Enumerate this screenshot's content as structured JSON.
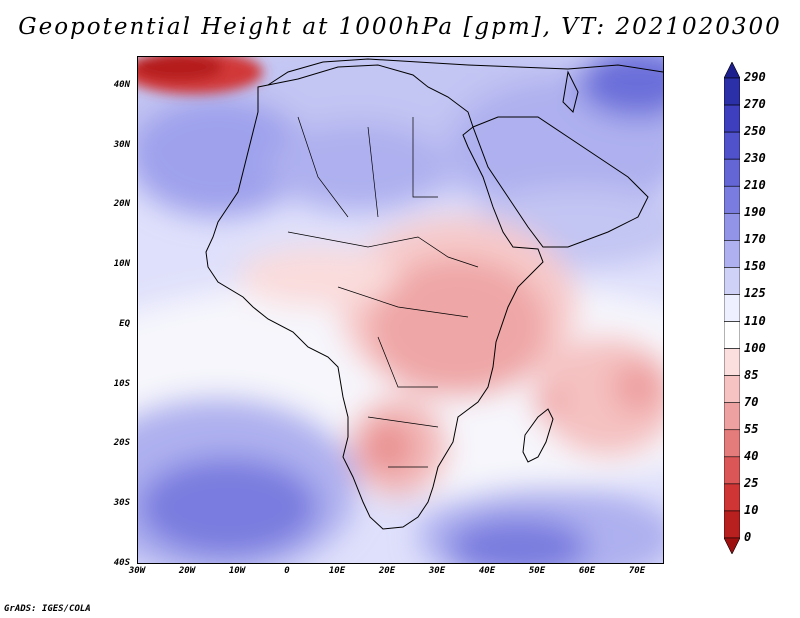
{
  "title": "Geopotential Height at 1000hPa [gpm], VT: 2021020300",
  "credit": "GrADS: IGES/COLA",
  "y_axis_labels": [
    "40N",
    "30N",
    "20N",
    "10N",
    "EQ",
    "10S",
    "20S",
    "30S",
    "40S"
  ],
  "x_axis_labels": [
    "30W",
    "20W",
    "10W",
    "0",
    "10E",
    "20E",
    "30E",
    "40E",
    "50E",
    "60E",
    "70E"
  ],
  "colorbar": {
    "labels": [
      "290",
      "270",
      "250",
      "230",
      "210",
      "190",
      "170",
      "150",
      "125",
      "110",
      "100",
      "85",
      "70",
      "55",
      "40",
      "25",
      "10",
      "0"
    ],
    "colors": [
      "#1e1f8f",
      "#2b2fa8",
      "#3d3fbe",
      "#5052cc",
      "#6466d6",
      "#7a7ddf",
      "#9294e7",
      "#aeb0ef",
      "#cfd1f7",
      "#eef0ff",
      "#ffffff",
      "#fbdede",
      "#f6c2c2",
      "#eea1a1",
      "#e57c7c",
      "#db5656",
      "#cf3535",
      "#b81f1f",
      "#9e1010"
    ]
  },
  "field": {
    "type": "filled-contour",
    "variable": "Geopotential Height at 1000hPa",
    "units": "gpm",
    "valid_time": "2021020300",
    "lon_range": [
      -30,
      75
    ],
    "lat_range": [
      -40,
      45
    ]
  }
}
